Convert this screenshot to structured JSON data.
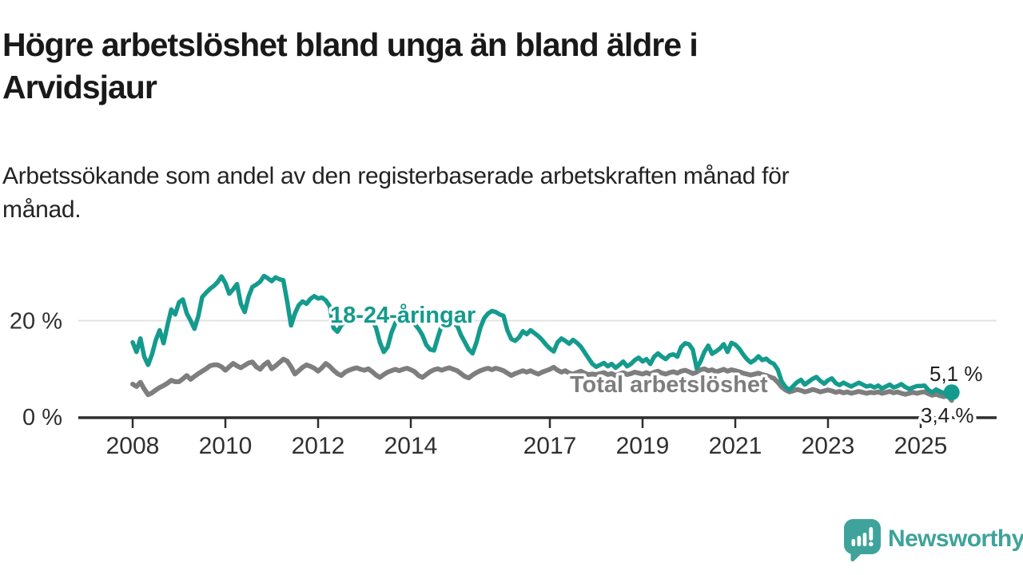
{
  "header": {
    "title": "Högre arbetslöshet bland unga än bland äldre i\nArvidsjaur",
    "subtitle": "Arbetssökande som andel av den registerbaserade arbetskraften månad för\nmånad."
  },
  "chart_data": {
    "type": "line",
    "title": "Högre arbetslöshet bland unga än bland äldre i Arvidsjaur",
    "subtitle": "Arbetssökande som andel av den registerbaserade arbetskraften månad för månad.",
    "unit": "%",
    "x_start": "2008-01",
    "x_end": "2025-09",
    "x_interval": "monthly",
    "ylim": [
      0,
      30
    ],
    "grid": "horizontal gridline at 20% only",
    "legend_position": "inline series labels on chart",
    "yticks": [
      {
        "value": 20,
        "label": "20 %"
      },
      {
        "value": 0,
        "label": "0 %"
      }
    ],
    "xticks": [
      {
        "year": 2008,
        "label": "2008"
      },
      {
        "year": 2010,
        "label": "2010"
      },
      {
        "year": 2012,
        "label": "2012"
      },
      {
        "year": 2014,
        "label": "2014"
      },
      {
        "year": 2017,
        "label": "2017"
      },
      {
        "year": 2019,
        "label": "2019"
      },
      {
        "year": 2021,
        "label": "2021"
      },
      {
        "year": 2023,
        "label": "2023"
      },
      {
        "year": 2025,
        "label": "2025"
      }
    ],
    "gridline_values": [
      20
    ],
    "series": [
      {
        "name": "18-24-åringar",
        "color": "#149b8d",
        "end_label": "5,1 %",
        "end_value": 5.1,
        "end_marker": true,
        "values": [
          15.5,
          13.5,
          16.3,
          12.5,
          10.8,
          13.0,
          16.0,
          18.0,
          15.3,
          19.0,
          22.3,
          21.3,
          23.8,
          24.4,
          21.5,
          20.0,
          18.3,
          21.0,
          24.9,
          25.8,
          26.6,
          27.2,
          28.0,
          29.2,
          27.8,
          25.6,
          26.5,
          27.6,
          23.5,
          21.8,
          25.0,
          27.0,
          27.5,
          28.1,
          29.3,
          28.8,
          28.2,
          29.0,
          28.6,
          28.4,
          24.0,
          19.0,
          21.5,
          23.2,
          24.0,
          23.5,
          24.5,
          25.1,
          24.6,
          24.8,
          24.2,
          23.0,
          18.5,
          17.7,
          19.0,
          20.0,
          21.0,
          21.5,
          21.2,
          20.8,
          20.3,
          20.8,
          20.0,
          18.5,
          15.5,
          13.5,
          14.5,
          17.5,
          19.5,
          20.5,
          21.0,
          20.5,
          20.0,
          19.3,
          18.3,
          17.0,
          15.0,
          14.0,
          13.8,
          16.5,
          19.0,
          20.3,
          20.0,
          19.3,
          19.0,
          17.0,
          15.5,
          14.0,
          13.2,
          15.5,
          18.5,
          20.5,
          21.5,
          22.0,
          21.8,
          21.3,
          21.0,
          18.0,
          16.2,
          15.8,
          16.5,
          17.8,
          17.2,
          18.0,
          17.4,
          16.8,
          16.0,
          15.0,
          14.2,
          13.6,
          15.5,
          16.3,
          15.8,
          15.2,
          16.0,
          15.4,
          14.6,
          13.4,
          12.2,
          11.0,
          10.4,
          10.8,
          11.2,
          10.5,
          11.0,
          10.2,
          10.8,
          11.5,
          10.5,
          11.0,
          11.8,
          12.3,
          11.5,
          12.0,
          11.0,
          12.5,
          13.2,
          12.5,
          12.0,
          12.8,
          13.0,
          12.5,
          14.5,
          15.3,
          15.1,
          14.0,
          10.1,
          11.5,
          13.5,
          14.8,
          13.1,
          13.6,
          14.2,
          15.1,
          13.5,
          15.4,
          15.0,
          14.2,
          13.0,
          12.0,
          11.3,
          11.8,
          12.6,
          11.8,
          12.1,
          11.4,
          11.0,
          9.8,
          7.4,
          6.2,
          5.6,
          6.4,
          7.2,
          7.7,
          6.7,
          7.3,
          7.9,
          8.3,
          7.5,
          6.9,
          7.6,
          8.0,
          7.0,
          6.6,
          7.1,
          6.7,
          6.3,
          6.7,
          7.1,
          6.7,
          6.3,
          6.5,
          6.1,
          6.5,
          5.9,
          6.3,
          6.7,
          6.1,
          6.4,
          6.8,
          6.2,
          5.8,
          6.1,
          6.4,
          6.4,
          6.5,
          5.6,
          5.1,
          5.7,
          5.3,
          4.9,
          5.5,
          5.1
        ]
      },
      {
        "name": "Total arbetslöshet",
        "color": "#7e7e7e",
        "end_label": "3,4 %",
        "end_value": 3.4,
        "end_marker": false,
        "values": [
          6.8,
          6.3,
          7.2,
          5.8,
          4.6,
          5.0,
          5.6,
          6.1,
          6.5,
          7.0,
          7.6,
          7.3,
          7.3,
          7.9,
          8.6,
          7.8,
          8.4,
          9.0,
          9.5,
          10.0,
          10.6,
          10.8,
          10.8,
          10.4,
          9.7,
          10.4,
          11.1,
          10.6,
          10.2,
          10.7,
          11.2,
          11.4,
          10.4,
          9.9,
          10.8,
          11.4,
          10.0,
          10.6,
          11.3,
          12.0,
          11.6,
          10.4,
          8.9,
          9.6,
          10.3,
          10.8,
          10.5,
          10.1,
          9.5,
          10.2,
          11.1,
          10.5,
          9.7,
          9.0,
          8.6,
          9.3,
          9.7,
          10.0,
          10.2,
          9.9,
          9.7,
          10.0,
          9.4,
          8.7,
          8.2,
          8.8,
          9.3,
          9.6,
          9.9,
          9.6,
          9.9,
          10.1,
          9.8,
          9.4,
          8.6,
          8.2,
          8.8,
          9.4,
          9.8,
          10.0,
          9.7,
          10.0,
          10.2,
          9.9,
          9.6,
          9.0,
          8.4,
          8.1,
          8.7,
          9.2,
          9.6,
          9.9,
          10.1,
          9.8,
          10.1,
          9.9,
          9.6,
          9.1,
          8.6,
          9.0,
          9.3,
          9.6,
          9.3,
          9.6,
          9.2,
          8.9,
          9.3,
          9.6,
          9.9,
          10.3,
          9.7,
          9.3,
          9.6,
          9.1,
          8.9,
          9.2,
          9.5,
          9.1,
          8.8,
          8.9,
          8.8,
          9.0,
          9.2,
          8.8,
          9.0,
          8.6,
          8.9,
          9.2,
          8.8,
          9.0,
          9.3,
          9.1,
          8.9,
          9.2,
          8.9,
          9.3,
          9.5,
          9.1,
          8.9,
          9.2,
          9.4,
          9.1,
          9.5,
          9.7,
          9.4,
          9.0,
          9.3,
          9.8,
          10.0,
          9.6,
          9.8,
          9.4,
          9.6,
          9.9,
          9.5,
          9.8,
          9.6,
          9.4,
          9.1,
          8.9,
          8.7,
          8.9,
          9.1,
          8.8,
          8.6,
          8.3,
          8.0,
          7.2,
          6.2,
          5.6,
          5.2,
          5.4,
          5.7,
          5.5,
          5.2,
          5.4,
          5.7,
          5.5,
          5.2,
          5.4,
          5.6,
          5.4,
          5.1,
          5.3,
          5.0,
          5.2,
          4.9,
          5.1,
          5.3,
          5.1,
          4.9,
          5.1,
          5.0,
          5.2,
          4.9,
          5.1,
          5.3,
          5.0,
          5.2,
          4.9,
          4.7,
          4.9,
          5.1,
          4.9,
          5.1,
          5.2,
          4.8,
          4.5,
          4.7,
          4.4,
          4.2,
          4.5,
          3.4
        ]
      }
    ],
    "style": {
      "gridline_color": "#e3e3e3",
      "axis_color": "#2e2e2e",
      "tick_label_color": "#303030",
      "end_label_color": "#1f1f1f"
    }
  },
  "footer": {
    "brand": "Newsworthy",
    "brand_color": "#3ea39b"
  }
}
